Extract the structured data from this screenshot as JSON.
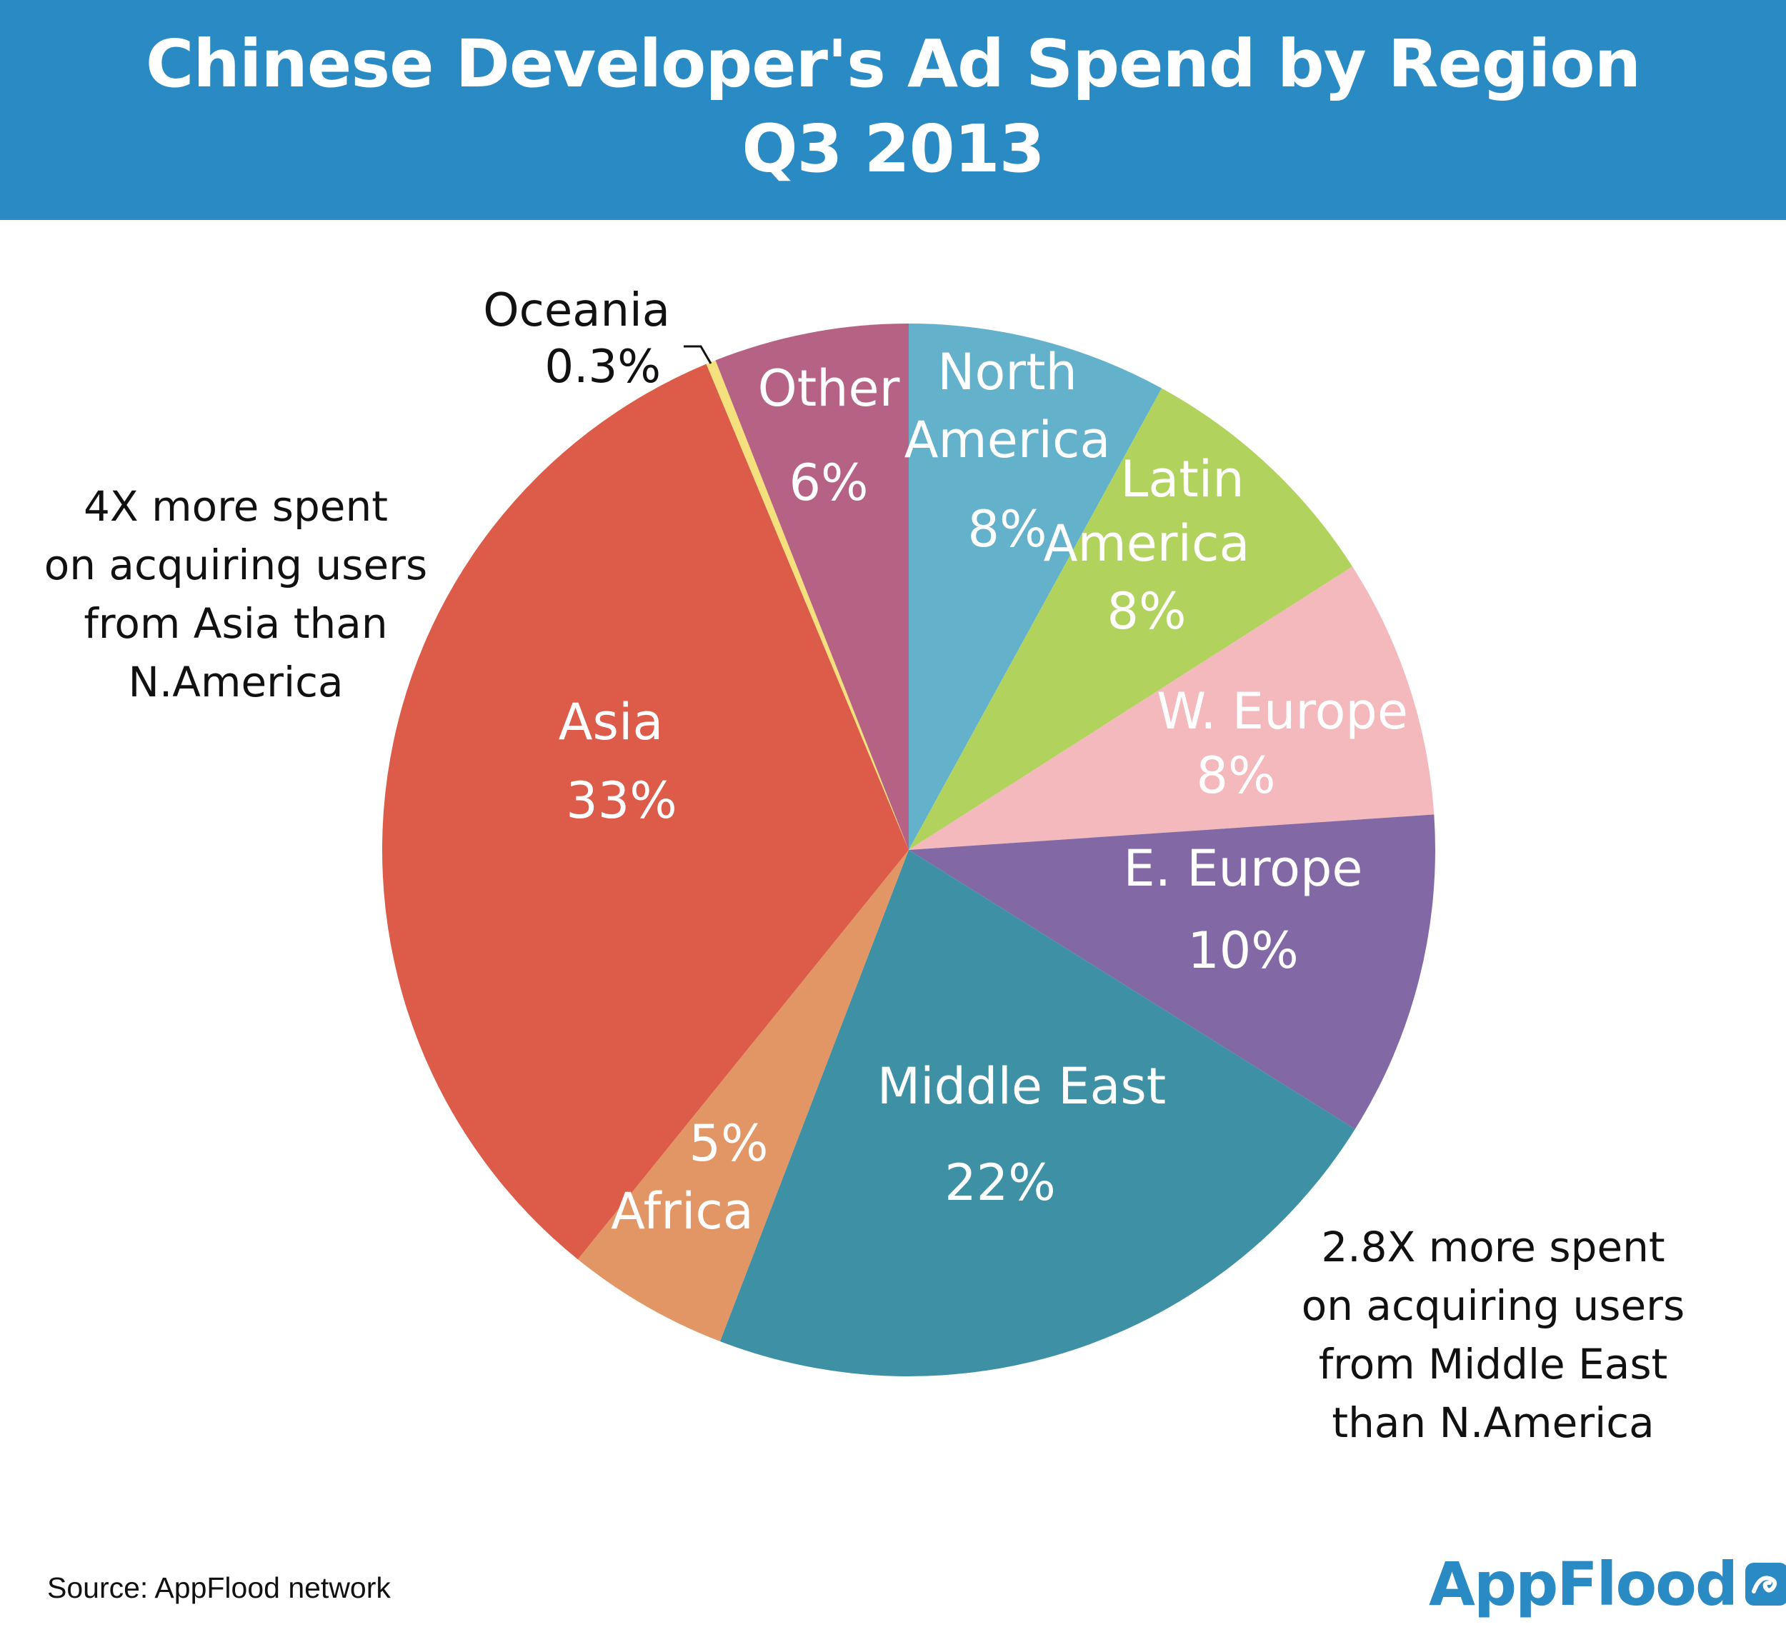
{
  "header": {
    "title_line1": "Chinese Developer's Ad Spend by Region",
    "title_line2": "Q3 2013",
    "background": "#2a8ac4"
  },
  "chart_data": {
    "type": "pie",
    "title": "Chinese Developer's Ad Spend by Region Q3 2013",
    "slices": [
      {
        "name": "North America",
        "label_lines": [
          "North",
          "America"
        ],
        "pct_label": "8%",
        "value": 8,
        "color": "#63b1cb"
      },
      {
        "name": "Latin America",
        "label_lines": [
          "Latin",
          "America"
        ],
        "pct_label": "8%",
        "value": 8,
        "color": "#b1d35e"
      },
      {
        "name": "W. Europe",
        "label_lines": [
          "W. Europe"
        ],
        "pct_label": "8%",
        "value": 8,
        "color": "#f4b9bc"
      },
      {
        "name": "E. Europe",
        "label_lines": [
          "E. Europe"
        ],
        "pct_label": "10%",
        "value": 10,
        "color": "#8269a5"
      },
      {
        "name": "Middle East",
        "label_lines": [
          "Middle East"
        ],
        "pct_label": "22%",
        "value": 22,
        "color": "#3e91a5"
      },
      {
        "name": "Africa",
        "label_lines": [
          "Africa"
        ],
        "pct_label": "5%",
        "value": 5,
        "color": "#e29665"
      },
      {
        "name": "Asia",
        "label_lines": [
          "Asia"
        ],
        "pct_label": "33%",
        "value": 33,
        "color": "#dc5b49"
      },
      {
        "name": "Oceania",
        "label_lines": [
          "Oceania"
        ],
        "pct_label": "0.3%",
        "value": 0.3,
        "color": "#f4e07d"
      },
      {
        "name": "Other",
        "label_lines": [
          "Other"
        ],
        "pct_label": "6%",
        "value": 6,
        "color": "#b56284"
      }
    ]
  },
  "annotations": {
    "asia": [
      "4X more spent",
      "on acquiring users",
      "from Asia than",
      "N.America"
    ],
    "middle_east": [
      "2.8X more spent",
      "on acquiring users",
      "from Middle East",
      "than N.America"
    ]
  },
  "footer": {
    "source": "Source: AppFlood network",
    "logo_text": "AppFlood"
  }
}
